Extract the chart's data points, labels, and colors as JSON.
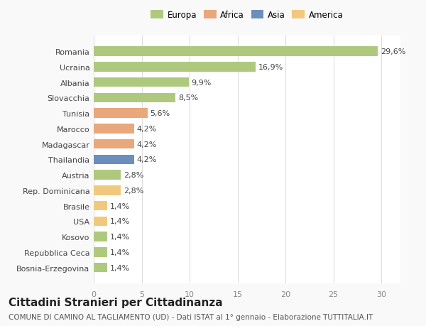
{
  "countries": [
    "Bosnia-Erzegovina",
    "Repubblica Ceca",
    "Kosovo",
    "USA",
    "Brasile",
    "Rep. Dominicana",
    "Austria",
    "Thailandia",
    "Madagascar",
    "Marocco",
    "Tunisia",
    "Slovacchia",
    "Albania",
    "Ucraina",
    "Romania"
  ],
  "values": [
    1.4,
    1.4,
    1.4,
    1.4,
    1.4,
    2.8,
    2.8,
    4.2,
    4.2,
    4.2,
    5.6,
    8.5,
    9.9,
    16.9,
    29.6
  ],
  "colors": [
    "#aec97e",
    "#aec97e",
    "#aec97e",
    "#f0c97e",
    "#f0c97e",
    "#f0c97e",
    "#aec97e",
    "#6a8fbb",
    "#e8a87c",
    "#e8a87c",
    "#e8a87c",
    "#aec97e",
    "#aec97e",
    "#aec97e",
    "#aec97e"
  ],
  "labels": [
    "1,4%",
    "1,4%",
    "1,4%",
    "1,4%",
    "1,4%",
    "2,8%",
    "2,8%",
    "4,2%",
    "4,2%",
    "4,2%",
    "5,6%",
    "8,5%",
    "9,9%",
    "16,9%",
    "29,6%"
  ],
  "legend_labels": [
    "Europa",
    "Africa",
    "Asia",
    "America"
  ],
  "legend_colors": [
    "#aec97e",
    "#e8a87c",
    "#6a8fbb",
    "#f0c97e"
  ],
  "title": "Cittadini Stranieri per Cittadinanza",
  "subtitle": "COMUNE DI CAMINO AL TAGLIAMENTO (UD) - Dati ISTAT al 1° gennaio - Elaborazione TUTTITALIA.IT",
  "xlim": [
    0,
    32
  ],
  "xticks": [
    0,
    5,
    10,
    15,
    20,
    25,
    30
  ],
  "bg_color": "#f9f9f9",
  "bar_bg_color": "#ffffff",
  "grid_color": "#dddddd",
  "bar_height": 0.62,
  "label_fontsize": 8,
  "title_fontsize": 11,
  "subtitle_fontsize": 7.5,
  "axis_fontsize": 8
}
